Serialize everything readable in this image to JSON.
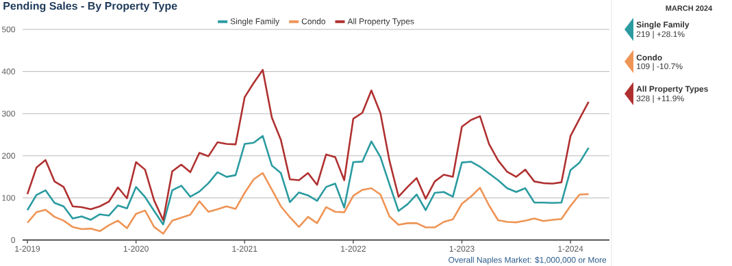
{
  "chart_data": [
    {
      "type": "line",
      "title": "Pending Sales - By Property Type",
      "categories": [
        "1-2019",
        null,
        null,
        null,
        null,
        null,
        null,
        null,
        null,
        null,
        null,
        null,
        "1-2020",
        null,
        null,
        null,
        null,
        null,
        null,
        null,
        null,
        null,
        null,
        null,
        "1-2021",
        null,
        null,
        null,
        null,
        null,
        null,
        null,
        null,
        null,
        null,
        null,
        "1-2022",
        null,
        null,
        null,
        null,
        null,
        null,
        null,
        null,
        null,
        null,
        null,
        "1-2023",
        null,
        null,
        null,
        null,
        null,
        null,
        null,
        null,
        null,
        null,
        null,
        "1-2024",
        null,
        null
      ],
      "series": [
        {
          "name": "Single Family",
          "color": "#2a9ba0",
          "values": [
            71,
            107,
            118,
            88,
            80,
            51,
            56,
            48,
            61,
            58,
            82,
            75,
            126,
            102,
            69,
            37,
            118,
            129,
            103,
            115,
            135,
            161,
            150,
            154,
            228,
            231,
            247,
            177,
            159,
            90,
            113,
            106,
            93,
            126,
            134,
            77,
            185,
            186,
            234,
            197,
            132,
            69,
            85,
            108,
            71,
            112,
            114,
            103,
            184,
            186,
            174,
            158,
            142,
            123,
            114,
            123,
            89,
            89,
            88,
            89,
            166,
            184,
            219
          ]
        },
        {
          "name": "Condo",
          "color": "#ee9455",
          "values": [
            41,
            66,
            72,
            55,
            46,
            31,
            26,
            27,
            21,
            35,
            46,
            28,
            62,
            70,
            31,
            15,
            46,
            53,
            60,
            92,
            67,
            73,
            80,
            74,
            112,
            144,
            159,
            120,
            80,
            54,
            31,
            55,
            40,
            78,
            67,
            66,
            105,
            119,
            123,
            108,
            56,
            36,
            40,
            40,
            30,
            30,
            43,
            49,
            86,
            103,
            124,
            82,
            47,
            43,
            42,
            46,
            51,
            45,
            48,
            50,
            81,
            108,
            109
          ]
        },
        {
          "name": "All Property Types",
          "color": "#b03030",
          "values": [
            109,
            172,
            190,
            139,
            126,
            80,
            78,
            73,
            80,
            91,
            125,
            99,
            185,
            167,
            94,
            47,
            163,
            179,
            161,
            207,
            199,
            232,
            228,
            227,
            339,
            373,
            404,
            291,
            238,
            144,
            142,
            159,
            131,
            203,
            197,
            142,
            288,
            302,
            355,
            301,
            188,
            103,
            126,
            147,
            98,
            139,
            155,
            150,
            269,
            285,
            294,
            228,
            189,
            162,
            150,
            167,
            139,
            135,
            134,
            137,
            247,
            288,
            328
          ]
        }
      ],
      "ylim": [
        0,
        500
      ],
      "yticks": [
        0,
        100,
        200,
        300,
        400,
        500
      ],
      "grid": "y",
      "legend": "top",
      "marker": "none",
      "line_style": "solid",
      "annotations": [
        "Overall Naples Market: $1,000,000 or More"
      ]
    },
    {
      "type": "other",
      "title": "MARCH 2024",
      "annotations": [
        "Single Family",
        "219 | +28.1%",
        "Condo",
        "109 | -10.7%",
        "All Property Types",
        "328 | +11.9%"
      ],
      "colors": [
        "#2a9ba0",
        "#ee9455",
        "#b03030"
      ]
    }
  ]
}
